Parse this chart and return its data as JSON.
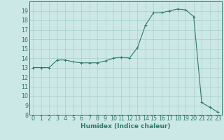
{
  "x": [
    0,
    1,
    2,
    3,
    4,
    5,
    6,
    7,
    8,
    9,
    10,
    11,
    12,
    13,
    14,
    15,
    16,
    17,
    18,
    19,
    20,
    21,
    22,
    23
  ],
  "y": [
    13.0,
    13.0,
    13.0,
    13.8,
    13.8,
    13.6,
    13.5,
    13.5,
    13.5,
    13.7,
    14.0,
    14.1,
    14.0,
    15.1,
    17.5,
    18.8,
    18.8,
    19.0,
    19.2,
    19.1,
    18.4,
    9.3,
    8.8,
    8.3
  ],
  "xlabel": "Humidex (Indice chaleur)",
  "ylim": [
    8,
    20
  ],
  "xlim": [
    -0.5,
    23.5
  ],
  "yticks": [
    8,
    9,
    10,
    11,
    12,
    13,
    14,
    15,
    16,
    17,
    18,
    19
  ],
  "xticks": [
    0,
    1,
    2,
    3,
    4,
    5,
    6,
    7,
    8,
    9,
    10,
    11,
    12,
    13,
    14,
    15,
    16,
    17,
    18,
    19,
    20,
    21,
    22,
    23
  ],
  "line_color": "#2d7a6e",
  "bg_color": "#cce8e6",
  "grid_color": "#a8d0cc",
  "label_color": "#2d7a6e",
  "tick_color": "#2d7a6e",
  "label_fontsize": 6.5,
  "tick_fontsize": 5.8
}
